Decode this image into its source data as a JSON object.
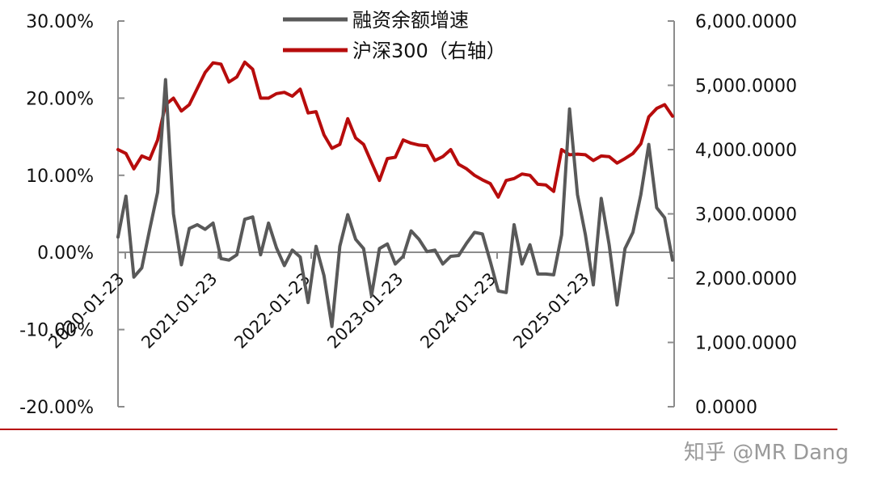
{
  "watermark": "知乎 @MR Dang",
  "chart_data": {
    "type": "line",
    "x_tick_labels": [
      "2020-01-23",
      "2021-01-23",
      "2022-01-23",
      "2023-01-23",
      "2024-01-23",
      "2025-01-23"
    ],
    "y_left": {
      "ticks": [
        "30.00%",
        "20.00%",
        "10.00%",
        "0.00%",
        "-10.00%",
        "-20.00%"
      ],
      "range": [
        -20,
        30
      ]
    },
    "y_right": {
      "ticks": [
        "6,000.0000",
        "5,000.0000",
        "4,000.0000",
        "3,000.0000",
        "2,000.0000",
        "1,000.0000",
        "0.0000"
      ],
      "range": [
        0,
        6000
      ]
    },
    "grid": false,
    "legend_position": "top-center",
    "series": [
      {
        "name": "融资余额增速",
        "axis": "left",
        "color": "#595959",
        "values": [
          2.0,
          7.3,
          -3.2,
          -2.0,
          3.0,
          7.8,
          22.4,
          5.0,
          -1.6,
          3.1,
          3.6,
          3.0,
          3.8,
          -0.8,
          -1.0,
          -0.3,
          4.3,
          4.6,
          -0.3,
          3.8,
          0.6,
          -1.7,
          0.3,
          -0.6,
          -6.5,
          0.8,
          -3.0,
          -9.6,
          0.8,
          4.9,
          1.7,
          0.5,
          -5.6,
          0.5,
          1.1,
          -1.5,
          -0.5,
          2.8,
          1.7,
          0.1,
          0.3,
          -1.5,
          -0.5,
          -0.4,
          1.2,
          2.6,
          2.4,
          -1.2,
          -5.0,
          -5.2,
          3.6,
          -1.5,
          1.0,
          -2.8,
          -2.8,
          -2.9,
          2.3,
          18.6,
          7.5,
          2.3,
          -4.2,
          7.0,
          1.0,
          -6.8,
          0.5,
          2.6,
          7.5,
          14.0,
          5.8,
          4.5,
          -1.0
        ]
      },
      {
        "name": "沪深300（右轴）",
        "axis": "right",
        "color": "#b70c0c",
        "values": [
          4000,
          3940,
          3700,
          3900,
          3850,
          4150,
          4700,
          4800,
          4600,
          4700,
          4950,
          5200,
          5350,
          5330,
          5050,
          5130,
          5360,
          5250,
          4800,
          4800,
          4870,
          4890,
          4830,
          4940,
          4570,
          4590,
          4230,
          4020,
          4080,
          4480,
          4180,
          4080,
          3800,
          3520,
          3860,
          3880,
          4150,
          4100,
          4070,
          4060,
          3830,
          3890,
          4000,
          3770,
          3700,
          3600,
          3530,
          3470,
          3260,
          3520,
          3550,
          3620,
          3600,
          3460,
          3450,
          3350,
          4000,
          3920,
          3930,
          3920,
          3830,
          3900,
          3890,
          3790,
          3860,
          3940,
          4090,
          4510,
          4640,
          4700,
          4520
        ]
      }
    ]
  }
}
